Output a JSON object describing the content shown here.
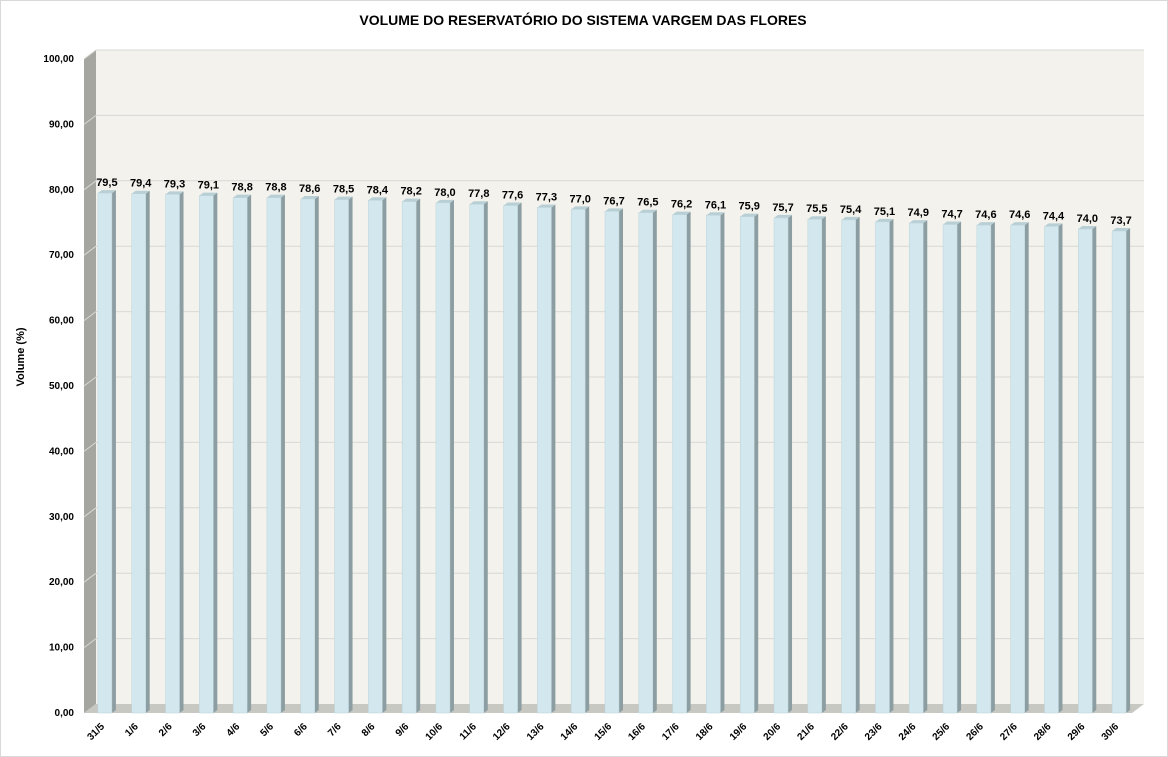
{
  "chart_data": {
    "type": "bar",
    "title": "VOLUME DO RESERVATÓRIO DO SISTEMA VARGEM DAS FLORES",
    "xlabel": "",
    "ylabel": "Volume (%)",
    "ylim": [
      0,
      100
    ],
    "yticks": [
      "0,00",
      "10,00",
      "20,00",
      "30,00",
      "40,00",
      "50,00",
      "60,00",
      "70,00",
      "80,00",
      "90,00",
      "100,00"
    ],
    "grid": true,
    "categories": [
      "31/5",
      "1/6",
      "2/6",
      "3/6",
      "4/6",
      "5/6",
      "6/6",
      "7/6",
      "8/6",
      "9/6",
      "10/6",
      "11/6",
      "12/6",
      "13/6",
      "14/6",
      "15/6",
      "16/6",
      "17/6",
      "18/6",
      "19/6",
      "20/6",
      "21/6",
      "22/6",
      "23/6",
      "24/6",
      "25/6",
      "26/6",
      "27/6",
      "28/6",
      "29/6",
      "30/6"
    ],
    "values": [
      79.5,
      79.4,
      79.3,
      79.1,
      78.8,
      78.8,
      78.6,
      78.5,
      78.4,
      78.2,
      78.0,
      77.8,
      77.6,
      77.3,
      77.0,
      76.7,
      76.5,
      76.2,
      76.1,
      75.9,
      75.7,
      75.5,
      75.4,
      75.1,
      74.9,
      74.7,
      74.6,
      74.6,
      74.4,
      74.0,
      73.7
    ],
    "value_labels": [
      "79,5",
      "79,4",
      "79,3",
      "79,1",
      "78,8",
      "78,8",
      "78,6",
      "78,5",
      "78,4",
      "78,2",
      "78,0",
      "77,8",
      "77,6",
      "77,3",
      "77,0",
      "76,7",
      "76,5",
      "76,2",
      "76,1",
      "75,9",
      "75,7",
      "75,5",
      "75,4",
      "75,1",
      "74,9",
      "74,7",
      "74,6",
      "74,6",
      "74,4",
      "74,0",
      "73,7"
    ],
    "colors": {
      "bar_front": "#d2e8ee",
      "bar_side": "#8c9ea2",
      "bar_top": "#b8cfd5",
      "plot_back": "#f3f2ed",
      "plot_wall": "#a6a6a1",
      "plot_floor": "#c8c8c3",
      "gridline": "#d8d8d4"
    }
  }
}
